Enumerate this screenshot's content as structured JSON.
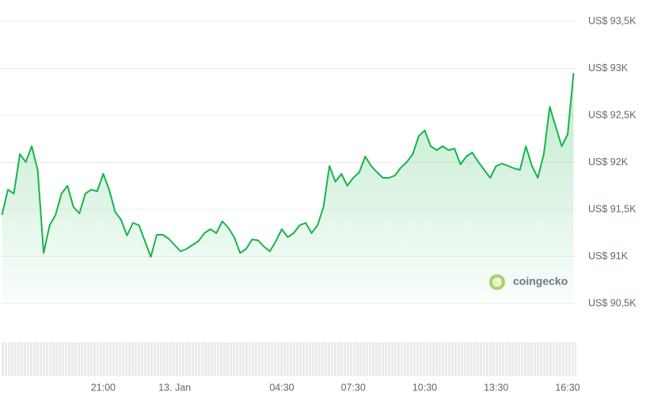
{
  "chart_data": {
    "type": "line",
    "watermark": "coingecko",
    "color": "#16b54a",
    "grid": true,
    "x": [
      "16:45",
      "17:00",
      "17:15",
      "17:30",
      "17:45",
      "18:00",
      "18:15",
      "18:30",
      "18:45",
      "19:00",
      "19:15",
      "19:30",
      "19:45",
      "20:00",
      "20:15",
      "20:30",
      "20:45",
      "21:00",
      "21:15",
      "21:30",
      "21:45",
      "22:00",
      "22:15",
      "22:30",
      "22:45",
      "23:00",
      "23:15",
      "23:30",
      "23:45",
      "00:00",
      "00:15",
      "00:30",
      "00:45",
      "01:00",
      "01:15",
      "01:30",
      "01:45",
      "02:00",
      "02:15",
      "02:30",
      "02:45",
      "03:00",
      "03:15",
      "03:30",
      "03:45",
      "04:00",
      "04:15",
      "04:30",
      "04:45",
      "05:00",
      "05:15",
      "05:30",
      "05:45",
      "06:00",
      "06:15",
      "06:30",
      "06:45",
      "07:00",
      "07:15",
      "07:30",
      "07:45",
      "08:00",
      "08:15",
      "08:30",
      "08:45",
      "09:00",
      "09:15",
      "09:30",
      "09:45",
      "10:00",
      "10:15",
      "10:30",
      "10:45",
      "11:00",
      "11:15",
      "11:30",
      "11:45",
      "12:00",
      "12:15",
      "12:30",
      "12:45",
      "13:00",
      "13:15",
      "13:30",
      "13:45",
      "14:00",
      "14:15",
      "14:30",
      "14:45",
      "15:00",
      "15:15",
      "15:30",
      "15:45",
      "16:00",
      "16:15",
      "16:30",
      "16:45"
    ],
    "values": [
      91441,
      91710,
      91668,
      92088,
      92004,
      92172,
      91920,
      91038,
      91332,
      91441,
      91668,
      91752,
      91525,
      91458,
      91668,
      91710,
      91693,
      91878,
      91710,
      91475,
      91391,
      91223,
      91357,
      91332,
      91164,
      90996,
      91231,
      91231,
      91189,
      91122,
      91055,
      91080,
      91122,
      91164,
      91248,
      91290,
      91248,
      91374,
      91307,
      91206,
      91038,
      91080,
      91181,
      91172,
      91105,
      91055,
      91164,
      91290,
      91206,
      91248,
      91332,
      91357,
      91248,
      91332,
      91525,
      91962,
      91794,
      91878,
      91752,
      91836,
      91895,
      92063,
      91962,
      91895,
      91836,
      91836,
      91861,
      91945,
      92004,
      92088,
      92281,
      92340,
      92172,
      92130,
      92172,
      92130,
      92147,
      91979,
      92063,
      92105,
      92004,
      91920,
      91836,
      91962,
      91987,
      91962,
      91937,
      91920,
      92172,
      91962,
      91836,
      92088,
      92592,
      92382,
      92172,
      92298,
      92950
    ],
    "ylim": [
      90500,
      93500
    ],
    "yticks": [
      {
        "value": 90500,
        "label": "US$ 90,5K"
      },
      {
        "value": 91000,
        "label": "US$ 91K"
      },
      {
        "value": 91500,
        "label": "US$ 91,5K"
      },
      {
        "value": 92000,
        "label": "US$ 92K"
      },
      {
        "value": 92500,
        "label": "US$ 92,5K"
      },
      {
        "value": 93000,
        "label": "US$ 93K"
      },
      {
        "value": 93500,
        "label": "US$ 93,5K"
      }
    ],
    "xticks": [
      {
        "value": "21:00",
        "label": "21:00"
      },
      {
        "value": "00:00",
        "label": "13. Jan"
      },
      {
        "value": "04:30",
        "label": "04:30"
      },
      {
        "value": "07:30",
        "label": "07:30"
      },
      {
        "value": "10:30",
        "label": "10:30"
      },
      {
        "value": "13:30",
        "label": "13:30"
      },
      {
        "value": "16:30",
        "label": "16:30"
      }
    ]
  }
}
